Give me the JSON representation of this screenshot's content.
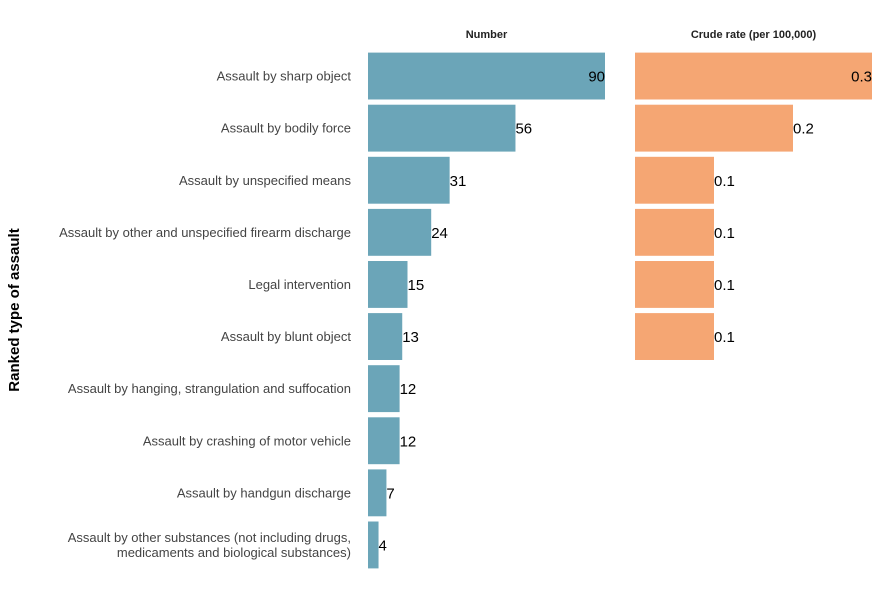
{
  "chart_data": {
    "type": "bar",
    "orientation": "horizontal",
    "ylabel": "Ranked type of assault",
    "categories": [
      [
        "Assault by sharp object"
      ],
      [
        "Assault by bodily force"
      ],
      [
        "Assault by unspecified means"
      ],
      [
        "Assault by other and unspecified firearm discharge"
      ],
      [
        "Legal intervention"
      ],
      [
        "Assault by blunt object"
      ],
      [
        "Assault by hanging, strangulation and suffocation"
      ],
      [
        "Assault by crashing of motor vehicle"
      ],
      [
        "Assault by handgun discharge"
      ],
      [
        "Assault by other substances (not including drugs,",
        "medicaments and biological substances)"
      ]
    ],
    "panels": [
      {
        "title": "Number",
        "color": "#6BA5B8",
        "xlim": [
          0,
          90
        ],
        "values": [
          90,
          56,
          31,
          24,
          15,
          13,
          12,
          12,
          7,
          4
        ],
        "labels": [
          "90",
          "56",
          "31",
          "24",
          "15",
          "13",
          "12",
          "12",
          "7",
          "4"
        ]
      },
      {
        "title": "Crude rate (per 100,000)",
        "color": "#F5A673",
        "xlim": [
          0,
          0.3
        ],
        "values": [
          0.3,
          0.2,
          0.1,
          0.1,
          0.1,
          0.1,
          null,
          null,
          null,
          null
        ],
        "labels": [
          "0.3",
          "0.2",
          "0.1",
          "0.1",
          "0.1",
          "0.1",
          "",
          "",
          "",
          ""
        ]
      }
    ],
    "grid": false,
    "legend": "none"
  }
}
